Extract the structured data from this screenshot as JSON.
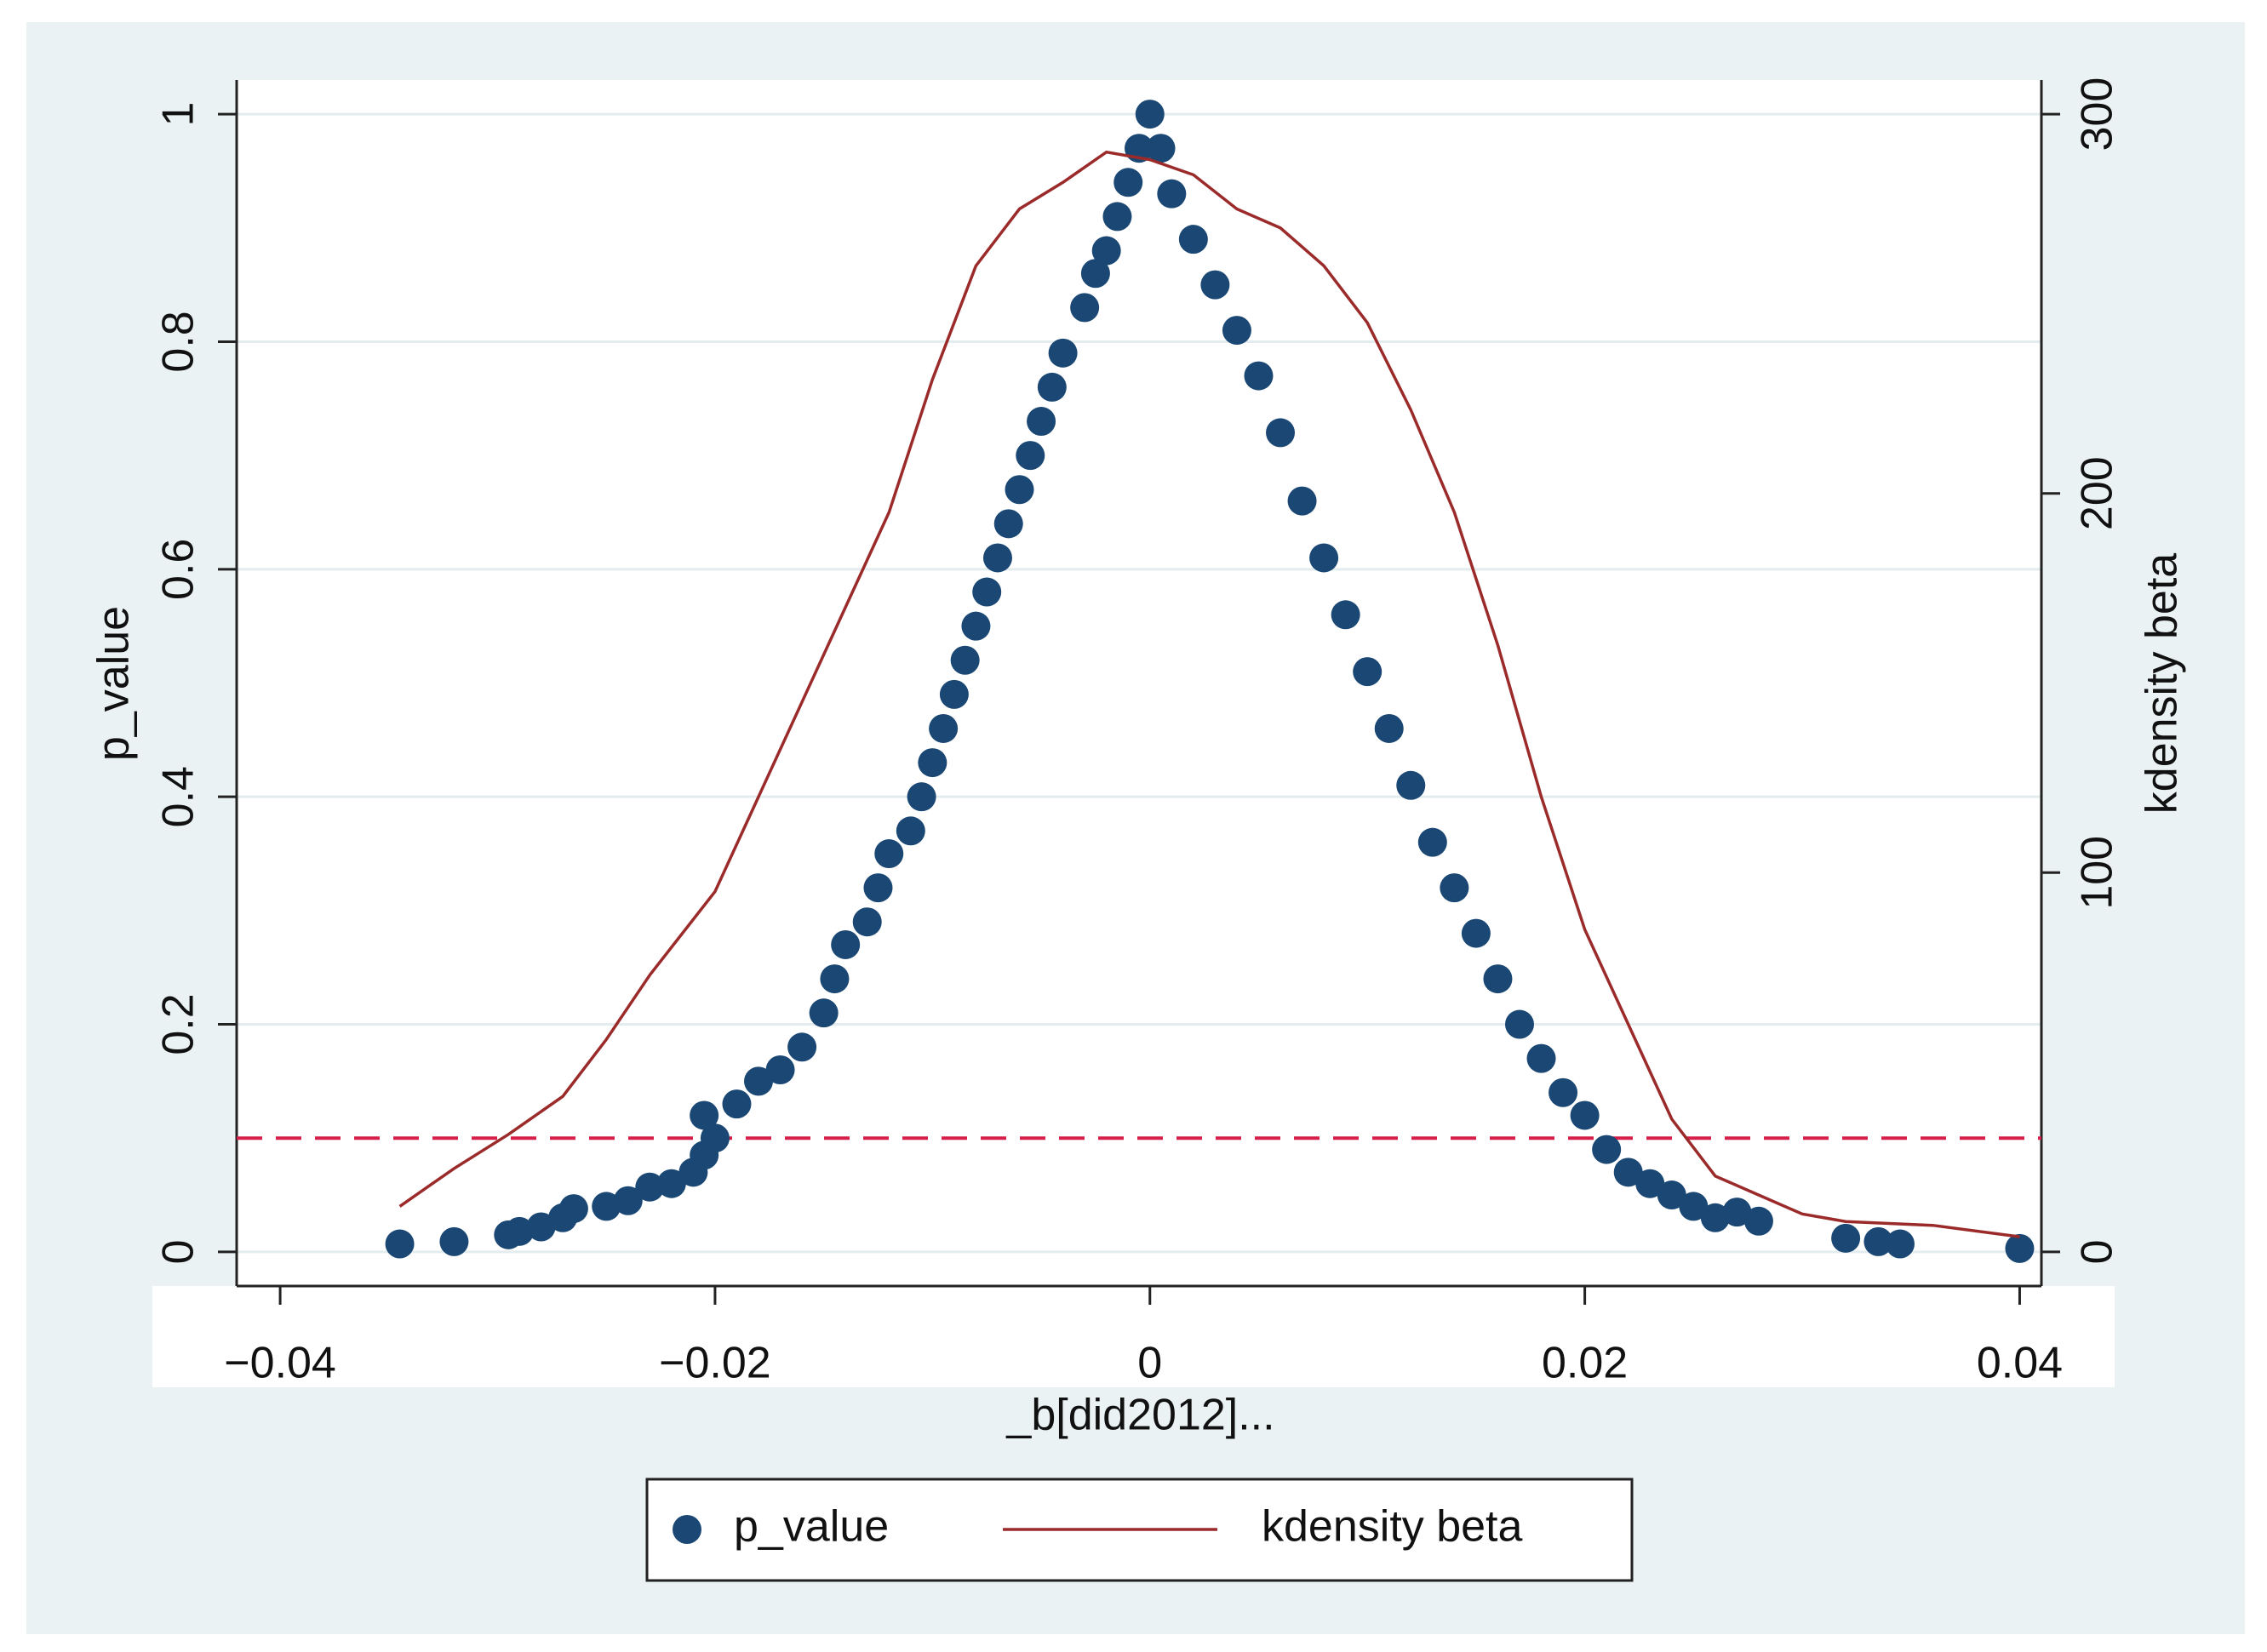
{
  "chart_data": {
    "type": "scatter-line",
    "x_label": "_b[did2012]...",
    "y_label": "p_value",
    "y2_label": "kdensity beta",
    "xlim": [
      -0.042,
      0.041
    ],
    "ylim": [
      -0.03,
      1.03
    ],
    "y2lim": [
      -9,
      309
    ],
    "xticks": [
      {
        "value": -0.04,
        "label": "−0.04"
      },
      {
        "value": -0.02,
        "label": "−0.02"
      },
      0,
      0.02,
      0.04
    ],
    "yticks": [
      0,
      0.2,
      0.4,
      0.6,
      0.8,
      1
    ],
    "y2ticks": [
      0,
      100,
      200,
      300
    ],
    "grid": true,
    "reference_line": {
      "value": 0.1,
      "color": "#d6204a"
    },
    "series": [
      {
        "name": "p_value",
        "type": "scatter",
        "color": "#1a4773",
        "x": [
          -0.0345,
          -0.032,
          -0.0295,
          -0.029,
          -0.028,
          -0.027,
          -0.0265,
          -0.025,
          -0.024,
          -0.023,
          -0.022,
          -0.021,
          -0.0205,
          -0.02,
          -0.0205,
          -0.019,
          -0.018,
          -0.017,
          -0.016,
          -0.015,
          -0.0145,
          -0.014,
          -0.013,
          -0.0125,
          -0.012,
          -0.011,
          -0.0105,
          -0.01,
          -0.0095,
          -0.009,
          -0.0085,
          -0.008,
          -0.0075,
          -0.007,
          -0.0065,
          -0.006,
          -0.0055,
          -0.005,
          -0.0045,
          -0.004,
          -0.003,
          -0.0025,
          -0.002,
          -0.0015,
          -0.001,
          -0.0005,
          0,
          0.0005,
          0.001,
          0.002,
          0.003,
          0.004,
          0.005,
          0.006,
          0.007,
          0.008,
          0.009,
          0.01,
          0.011,
          0.012,
          0.013,
          0.014,
          0.015,
          0.016,
          0.017,
          0.018,
          0.019,
          0.02,
          0.021,
          0.022,
          0.023,
          0.024,
          0.025,
          0.026,
          0.027,
          0.028,
          0.032,
          0.0335,
          0.0345,
          0.04
        ],
        "values": [
          0.007,
          0.009,
          0.015,
          0.018,
          0.022,
          0.03,
          0.038,
          0.04,
          0.045,
          0.057,
          0.06,
          0.07,
          0.085,
          0.1,
          0.12,
          0.13,
          0.15,
          0.16,
          0.18,
          0.21,
          0.24,
          0.27,
          0.29,
          0.32,
          0.35,
          0.37,
          0.4,
          0.43,
          0.46,
          0.49,
          0.52,
          0.55,
          0.58,
          0.61,
          0.64,
          0.67,
          0.7,
          0.73,
          0.76,
          0.79,
          0.83,
          0.86,
          0.88,
          0.91,
          0.94,
          0.97,
          1,
          0.97,
          0.93,
          0.89,
          0.85,
          0.81,
          0.77,
          0.72,
          0.66,
          0.61,
          0.56,
          0.51,
          0.46,
          0.41,
          0.36,
          0.32,
          0.28,
          0.24,
          0.2,
          0.17,
          0.14,
          0.12,
          0.09,
          0.07,
          0.06,
          0.05,
          0.04,
          0.03,
          0.035,
          0.027,
          0.012,
          0.009,
          0.007,
          0.003
        ]
      },
      {
        "name": "kdensity beta",
        "type": "line",
        "axis": "y2",
        "color": "#9b2b2b",
        "x": [
          -0.0345,
          -0.032,
          -0.0295,
          -0.027,
          -0.025,
          -0.023,
          -0.02,
          -0.018,
          -0.016,
          -0.014,
          -0.012,
          -0.01,
          -0.008,
          -0.006,
          -0.004,
          -0.002,
          0,
          0.002,
          0.004,
          0.006,
          0.008,
          0.01,
          0.012,
          0.014,
          0.016,
          0.018,
          0.02,
          0.022,
          0.024,
          0.026,
          0.028,
          0.03,
          0.032,
          0.036,
          0.04
        ],
        "values": [
          12,
          22,
          31,
          41,
          56,
          73,
          95,
          120,
          145,
          170,
          195,
          230,
          260,
          275,
          282,
          290,
          288,
          284,
          275,
          270,
          260,
          245,
          222,
          195,
          160,
          120,
          85,
          60,
          35,
          20,
          15,
          10,
          8,
          7,
          4
        ]
      }
    ]
  }
}
